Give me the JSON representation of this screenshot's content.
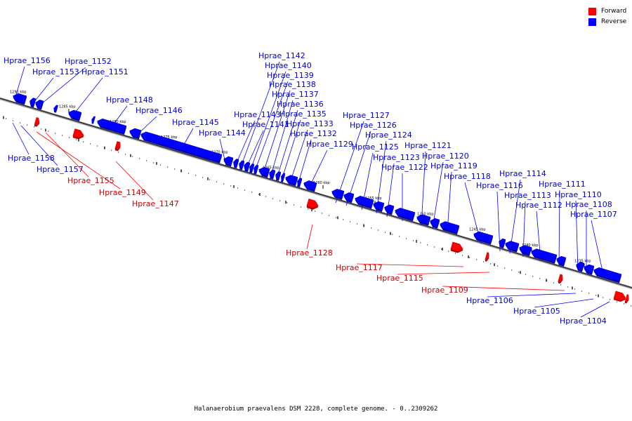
{
  "caption": "Halanaerobium praevalens DSM 2228, complete genome. - 0..2309262",
  "legend": [
    {
      "label": "Forward",
      "color": "#ff0000"
    },
    {
      "label": "Reverse",
      "color": "#0000ff"
    }
  ],
  "colors": {
    "forward": "#ff0000",
    "reverse": "#0000ff",
    "forward_label": "#cc0000",
    "reverse_label": "#0000cc",
    "leader": "#000000"
  },
  "ticks": [
    "1290 kbp",
    "1285 kbp",
    "1280 kbp",
    "1275 kbp",
    "1270 kbp",
    "1265 kbp",
    "1260 kbp",
    "1255 kbp",
    "1250 kbp",
    "1245 kbp",
    "1240 kbp",
    "1235 kbp"
  ],
  "genes": [
    {
      "name": "Hprae_1156",
      "strand": "reverse"
    },
    {
      "name": "Hprae_1153",
      "strand": "reverse"
    },
    {
      "name": "Hprae_1152",
      "strand": "reverse"
    },
    {
      "name": "Hprae_1151",
      "strand": "reverse"
    },
    {
      "name": "Hprae_1148",
      "strand": "reverse"
    },
    {
      "name": "Hprae_1146",
      "strand": "reverse"
    },
    {
      "name": "Hprae_1145",
      "strand": "reverse"
    },
    {
      "name": "Hprae_1144",
      "strand": "reverse"
    },
    {
      "name": "Hprae_1143",
      "strand": "reverse"
    },
    {
      "name": "Hprae_1142",
      "strand": "reverse"
    },
    {
      "name": "Hprae_1141",
      "strand": "reverse"
    },
    {
      "name": "Hprae_1140",
      "strand": "reverse"
    },
    {
      "name": "Hprae_1139",
      "strand": "reverse"
    },
    {
      "name": "Hprae_1138",
      "strand": "reverse"
    },
    {
      "name": "Hprae_1137",
      "strand": "reverse"
    },
    {
      "name": "Hprae_1136",
      "strand": "reverse"
    },
    {
      "name": "Hprae_1135",
      "strand": "reverse"
    },
    {
      "name": "Hprae_1133",
      "strand": "reverse"
    },
    {
      "name": "Hprae_1132",
      "strand": "reverse"
    },
    {
      "name": "Hprae_1129",
      "strand": "reverse"
    },
    {
      "name": "Hprae_1127",
      "strand": "reverse"
    },
    {
      "name": "Hprae_1126",
      "strand": "reverse"
    },
    {
      "name": "Hprae_1125",
      "strand": "reverse"
    },
    {
      "name": "Hprae_1124",
      "strand": "reverse"
    },
    {
      "name": "Hprae_1123",
      "strand": "reverse"
    },
    {
      "name": "Hprae_1122",
      "strand": "reverse"
    },
    {
      "name": "Hprae_1121",
      "strand": "reverse"
    },
    {
      "name": "Hprae_1120",
      "strand": "reverse"
    },
    {
      "name": "Hprae_1119",
      "strand": "reverse"
    },
    {
      "name": "Hprae_1118",
      "strand": "reverse"
    },
    {
      "name": "Hprae_1116",
      "strand": "reverse"
    },
    {
      "name": "Hprae_1114",
      "strand": "reverse"
    },
    {
      "name": "Hprae_1113",
      "strand": "reverse"
    },
    {
      "name": "Hprae_1112",
      "strand": "reverse"
    },
    {
      "name": "Hprae_1111",
      "strand": "reverse"
    },
    {
      "name": "Hprae_1110",
      "strand": "reverse"
    },
    {
      "name": "Hprae_1108",
      "strand": "reverse"
    },
    {
      "name": "Hprae_1107",
      "strand": "reverse"
    },
    {
      "name": "Hprae_1158",
      "strand": "reverse"
    },
    {
      "name": "Hprae_1157",
      "strand": "reverse"
    },
    {
      "name": "Hprae_1106",
      "strand": "reverse"
    },
    {
      "name": "Hprae_1105",
      "strand": "reverse"
    },
    {
      "name": "Hprae_1104",
      "strand": "reverse"
    },
    {
      "name": "Hprae_1155",
      "strand": "forward"
    },
    {
      "name": "Hprae_1149",
      "strand": "forward"
    },
    {
      "name": "Hprae_1147",
      "strand": "forward"
    },
    {
      "name": "Hprae_1128",
      "strand": "forward"
    },
    {
      "name": "Hprae_1117",
      "strand": "forward"
    },
    {
      "name": "Hprae_1115",
      "strand": "forward"
    },
    {
      "name": "Hprae_1109",
      "strand": "forward"
    }
  ]
}
